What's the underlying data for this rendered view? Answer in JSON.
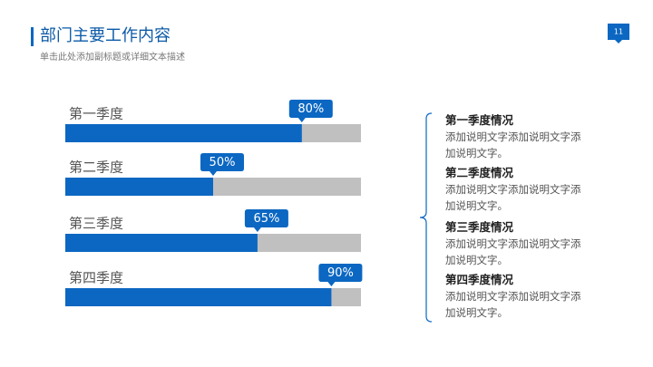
{
  "page_number": "11",
  "header": {
    "title": "部门主要工作内容",
    "subtitle": "单击此处添加副标题或详细文本描述"
  },
  "chart_data": {
    "type": "progress-bar",
    "categories": [
      "第一季度",
      "第二季度",
      "第三季度",
      "第四季度"
    ],
    "values": [
      80,
      50,
      65,
      90
    ],
    "value_labels": [
      "80%",
      "50%",
      "65%",
      "90%"
    ],
    "xlim": [
      0,
      100
    ],
    "color": "#0b67c2",
    "track_color": "#c0c0c0"
  },
  "notes": [
    {
      "title": "第一季度情况",
      "text": "添加说明文字添加说明文字添加说明文字。"
    },
    {
      "title": "第二季度情况",
      "text": "添加说明文字添加说明文字添加说明文字。"
    },
    {
      "title": "第三季度情况",
      "text": "添加说明文字添加说明文字添加说明文字。"
    },
    {
      "title": "第四季度情况",
      "text": "添加说明文字添加说明文字添加说明文字。"
    }
  ]
}
